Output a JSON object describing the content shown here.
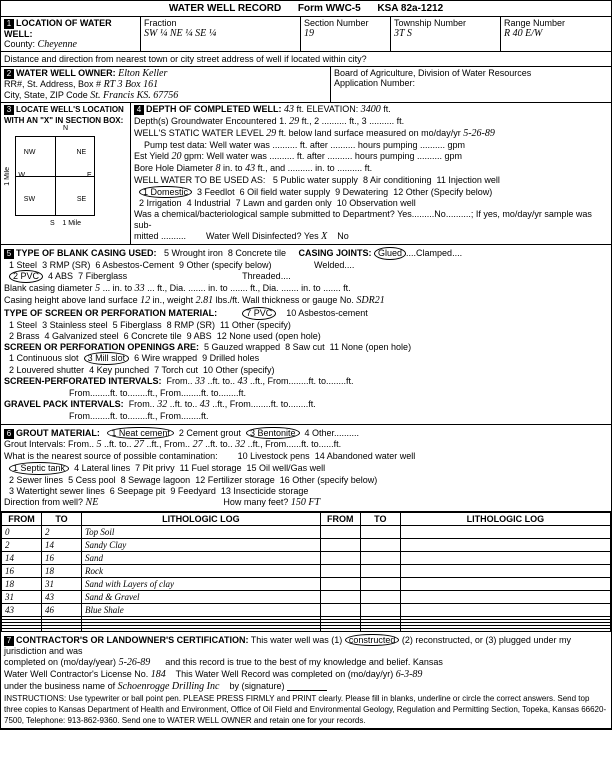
{
  "header": {
    "title": "WATER WELL RECORD",
    "form_no": "Form WWC-5",
    "ksa": "KSA 82a-1212"
  },
  "loc": {
    "section_title": "LOCATION OF WATER WELL:",
    "county_label": "County:",
    "county": "Cheyenne",
    "fraction_label": "Fraction",
    "fraction": "SW ¼  NE ¼  SE ¼",
    "section_label": "Section Number",
    "section": "19",
    "township_label": "Township Number",
    "township": "3T        S",
    "range_label": "Range Number",
    "range": "R  40  E/W",
    "dist_note": "Distance and direction from nearest town or city street address of well if located within city?"
  },
  "owner": {
    "title": "WATER WELL OWNER:",
    "name": "Elton Keller",
    "rr_label": "RR#, St. Address, Box #",
    "rr": "RT 3 Box 161",
    "city_label": "City, State, ZIP Code",
    "city": "St. Francis  KS.  67756",
    "board": "Board of Agriculture, Division of Water Resources",
    "app_label": "Application Number:"
  },
  "depth": {
    "title": "DEPTH OF COMPLETED WELL:",
    "completed": "43",
    "elev_label": "ft. ELEVATION:",
    "elev": "3400",
    "gw_label": "Depth(s) Groundwater Encountered",
    "gw1": "29",
    "static_label": "WELL'S STATIC WATER LEVEL",
    "static": "29",
    "static_date": "5-26-89",
    "pump_label": "Pump test data: Well water was",
    "yield_label": "Est Yield",
    "yield": "20",
    "bore_label": "Bore Hole Diameter",
    "bore1": "8",
    "bore2": "43",
    "use_label": "WELL WATER TO BE USED AS:",
    "use1": "1 Domestic",
    "use2": "2 Irrigation",
    "use3": "3 Feedlot",
    "use4": "4 Industrial",
    "use5": "5 Public water supply",
    "use6": "6 Oil field water supply",
    "use7": "7 Lawn and garden only",
    "use8": "8 Air conditioning",
    "use9": "9 Dewatering",
    "use10": "10 Observation well",
    "use11": "11 Injection well",
    "use12": "12 Other (Specify below)",
    "chem_label": "Was a chemical/bacteriological sample submitted to Department? Yes.........No..........; If yes, mo/day/yr sample was sub-",
    "disinfect_label": "Water Well Disinfected?  Yes",
    "disinfect": "X",
    "disinfect_no": "No"
  },
  "locate_box_title": "LOCATE WELL'S LOCATION WITH AN \"X\" IN SECTION BOX:",
  "casing": {
    "title": "TYPE OF BLANK CASING USED:",
    "opt1": "1 Steel",
    "opt2": "2 PVC",
    "opt3": "3 RMP (SR)",
    "opt4": "4 ABS",
    "opt5": "5 Wrought iron",
    "opt6": "6 Asbestos-Cement",
    "opt7": "7 Fiberglass",
    "opt8": "8 Concrete tile",
    "opt9": "9 Other (specify below)",
    "joints_label": "CASING JOINTS:",
    "j1": "Glued",
    "j2": "Welded",
    "j3": "Clamped",
    "j4": "Threaded",
    "blank_dia_label": "Blank casing diameter",
    "blank_dia": "5",
    "blank_to": "33",
    "height_label": "Casing height above land surface",
    "height": "12",
    "weight": "2.81",
    "gauge_label": "lbs./ft. Wall thickness or gauge No.",
    "gauge": "SDR21",
    "screen_title": "TYPE OF SCREEN OR PERFORATION MATERIAL:",
    "s1": "1 Steel",
    "s2": "2 Brass",
    "s3": "3 Stainless steel",
    "s4": "4 Galvanized steel",
    "s5": "5 Fiberglass",
    "s6": "6 Concrete tile",
    "s7": "7 PVC",
    "s8": "8 RMP (SR)",
    "s9": "9 ABS",
    "s10": "10 Asbestos-cement",
    "s11": "11 Other (specify)",
    "s12": "12 None used (open hole)",
    "open_title": "SCREEN OR PERFORATION OPENINGS ARE:",
    "o1": "1 Continuous slot",
    "o2": "2 Louvered shutter",
    "o3": "3 Mill slot",
    "o4": "4 Key punched",
    "o5": "5 Gauzed wrapped",
    "o6": "6 Wire wrapped",
    "o7": "7 Torch cut",
    "o8": "8 Saw cut",
    "o9": "9 Drilled holes",
    "o10": "10 Other (specify)",
    "o11": "11 None (open hole)",
    "perf_label": "SCREEN-PERFORATED INTERVALS:",
    "perf_from": "33",
    "perf_to": "43",
    "gravel_label": "GRAVEL PACK INTERVALS:",
    "gravel_from": "32",
    "gravel_to": "43"
  },
  "grout": {
    "title": "GROUT MATERIAL:",
    "g1": "1 Neat cement",
    "g2": "2 Cement grout",
    "g3": "3 Bentonite",
    "g4": "4 Other",
    "int_label": "Grout Intervals:",
    "int_from": "5",
    "int_to": "27",
    "int_from2": "27",
    "int_to2": "32",
    "contam_label": "What is the nearest source of possible contamination:",
    "c1": "1 Septic tank",
    "c2": "2 Sewer lines",
    "c3": "3 Watertight sewer lines",
    "c4": "4 Lateral lines",
    "c5": "5 Cess pool",
    "c6": "6 Seepage pit",
    "c7": "7 Pit privy",
    "c8": "8 Sewage lagoon",
    "c9": "9 Feedyard",
    "c10": "10 Livestock pens",
    "c11": "11 Fuel storage",
    "c12": "12 Fertilizer storage",
    "c13": "13 Insecticide storage",
    "c14": "14 Abandoned water well",
    "c15": "15 Oil well/Gas well",
    "c16": "16 Other (specify below)",
    "dir_label": "Direction from well?",
    "dir": "NE",
    "feet_label": "How many feet?",
    "feet": "150 FT"
  },
  "log": {
    "col_from": "FROM",
    "col_to": "TO",
    "col_lith": "LITHOLOGIC LOG",
    "rows": [
      {
        "from": "0",
        "to": "2",
        "lith": "Top Soil"
      },
      {
        "from": "2",
        "to": "14",
        "lith": "Sandy Clay"
      },
      {
        "from": "14",
        "to": "16",
        "lith": "Sand"
      },
      {
        "from": "16",
        "to": "18",
        "lith": "Rock"
      },
      {
        "from": "18",
        "to": "31",
        "lith": "Sand with Layers of clay"
      },
      {
        "from": "31",
        "to": "43",
        "lith": "Sand & Gravel"
      },
      {
        "from": "43",
        "to": "46",
        "lith": "Blue Shale"
      }
    ]
  },
  "cert": {
    "title": "CONTRACTOR'S OR LANDOWNER'S CERTIFICATION:",
    "text1": "This water well was (1)",
    "constructed": "constructed",
    "text2": "(2) reconstructed, or (3) plugged under my jurisdiction and was",
    "comp_label": "completed on (mo/day/year)",
    "comp": "5-26-89",
    "text3": "and this record is true to the best of my knowledge and belief. Kansas",
    "lic_label": "Water Well Contractor's License No.",
    "lic": "184",
    "text4": "This Water Well Record was completed on (mo/day/yr)",
    "wwc_date": "6-3-89",
    "biz_label": "under the business name of",
    "biz": "Schoenrogge  Drilling  Inc",
    "sig_label": "by (signature)",
    "instr": "INSTRUCTIONS: Use typewriter or ball point pen. PLEASE PRESS FIRMLY and PRINT clearly. Please fill in blanks, underline or circle the correct answers. Send top three copies to Kansas Department of Health and Environment, Office of Oil Field and Environmental Geology, Regulation and Permitting Section, Topeka, Kansas 66620-7500, Telephone: 913-862-9360. Send one to WATER WELL OWNER and retain one for your records."
  }
}
